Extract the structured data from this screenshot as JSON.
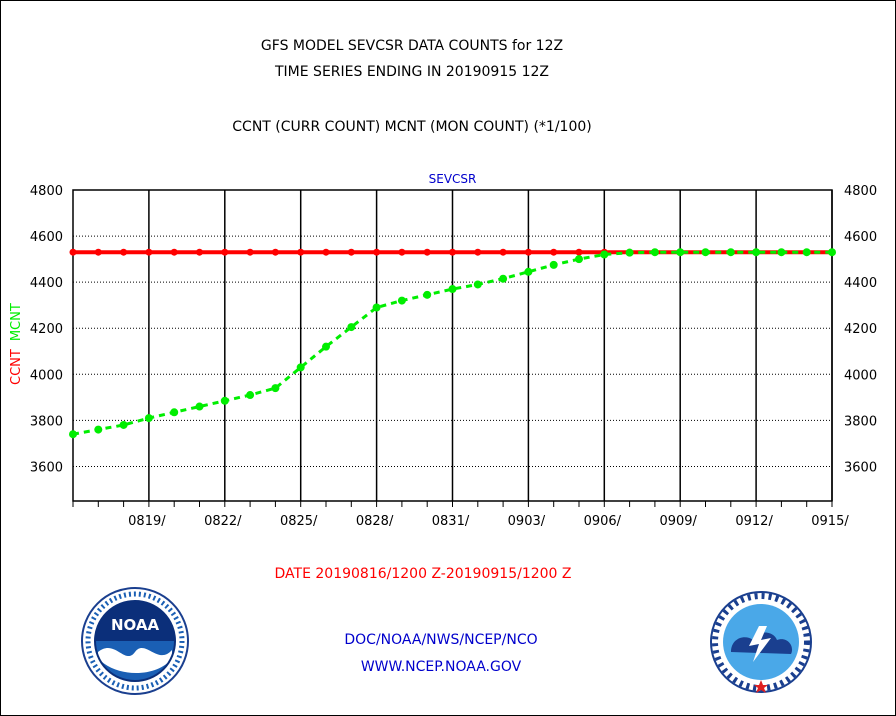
{
  "header": {
    "title_line1": "GFS MODEL SEVCSR DATA COUNTS for 12Z",
    "title_line2": "TIME SERIES ENDING IN 20190915 12Z",
    "subtitle": "CCNT (CURR COUNT) MCNT (MON COUNT) (*1/100)"
  },
  "footer": {
    "date_range": "DATE 20190816/1200 Z-20190915/1200 Z",
    "agency": "DOC/NOAA/NWS/NCEP/NCO",
    "website": "WWW.NCEP.NOAA.GOV"
  },
  "logos": {
    "left": {
      "icon": "noaa-logo",
      "text": "NOAA"
    },
    "right": {
      "icon": "nws-logo"
    }
  },
  "colors": {
    "ccnt": "#ff0000",
    "mcnt": "#00ee00",
    "plot_title": "#0000cc",
    "footer_links": "#0000cc",
    "date_range": "#ff0000"
  },
  "chart_data": {
    "type": "line",
    "title": "SEVCSR",
    "ylabel_series": [
      "CCNT",
      "MCNT"
    ],
    "ylim": [
      3450,
      4800
    ],
    "yticks": [
      3600,
      3800,
      4000,
      4200,
      4400,
      4600,
      4800
    ],
    "x_tick_labels": [
      "0819/",
      "0822/",
      "0825/",
      "0828/",
      "0831/",
      "0903/",
      "0906/",
      "0909/",
      "0912/",
      "0915/"
    ],
    "x_tick_days": [
      3,
      6,
      9,
      12,
      15,
      18,
      21,
      24,
      27,
      30
    ],
    "xlim_days": [
      0,
      30
    ],
    "grid": true,
    "series": [
      {
        "name": "CCNT",
        "color": "#ff0000",
        "values": [
          4530,
          4530,
          4530,
          4530,
          4530,
          4530,
          4530,
          4530,
          4530,
          4530,
          4530,
          4530,
          4530,
          4530,
          4530,
          4530,
          4530,
          4530,
          4530,
          4530,
          4530,
          4530,
          4530,
          4530,
          4530,
          4530,
          4530,
          4530,
          4530,
          4530,
          4530
        ]
      },
      {
        "name": "MCNT",
        "color": "#00ee00",
        "values": [
          3740,
          3760,
          3780,
          3810,
          3835,
          3860,
          3885,
          3910,
          3940,
          4030,
          4120,
          4205,
          4290,
          4320,
          4345,
          4370,
          4390,
          4415,
          4445,
          4475,
          4500,
          4520,
          4528,
          4530,
          4530,
          4530,
          4530,
          4530,
          4530,
          4530,
          4530
        ]
      }
    ]
  }
}
